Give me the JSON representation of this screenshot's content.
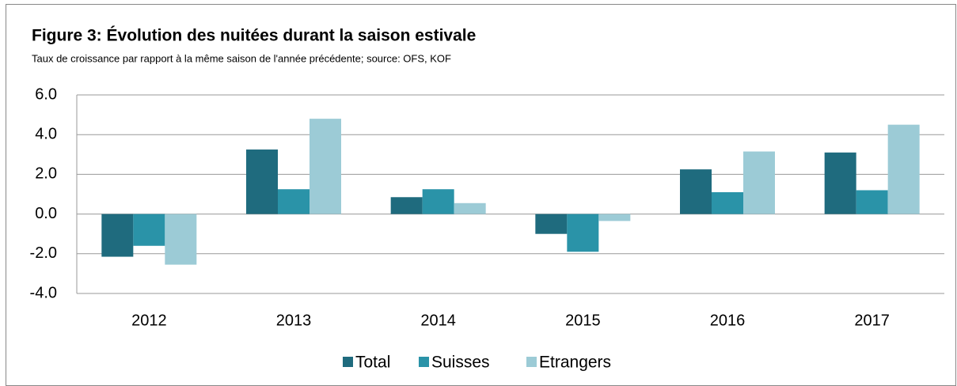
{
  "chart_data": {
    "type": "bar",
    "title": "Figure 3: Évolution des nuitées durant la saison estivale",
    "subtitle": "Taux de croissance par rapport à la même saison de l'année précédente; source: OFS, KOF",
    "categories": [
      "2012",
      "2013",
      "2014",
      "2015",
      "2016",
      "2017"
    ],
    "series": [
      {
        "name": "Total",
        "color": "#1f6b7e",
        "values": [
          -2.15,
          3.25,
          0.85,
          -1.0,
          2.25,
          3.1
        ]
      },
      {
        "name": "Suisses",
        "color": "#2a93a8",
        "values": [
          -1.6,
          1.25,
          1.25,
          -1.9,
          1.1,
          1.2
        ]
      },
      {
        "name": "Etrangers",
        "color": "#9ccbd6",
        "values": [
          -2.55,
          4.8,
          0.55,
          -0.35,
          3.15,
          4.5
        ]
      }
    ],
    "ylim": [
      -4,
      6
    ],
    "yticks": [
      {
        "value": -4,
        "label": "-4.0"
      },
      {
        "value": -2,
        "label": "-2.0"
      },
      {
        "value": 0,
        "label": "0.0"
      },
      {
        "value": 2,
        "label": "2.0"
      },
      {
        "value": 4,
        "label": "4.0"
      },
      {
        "value": 6,
        "label": "6.0"
      }
    ],
    "grid": true,
    "legend": "bottom"
  }
}
